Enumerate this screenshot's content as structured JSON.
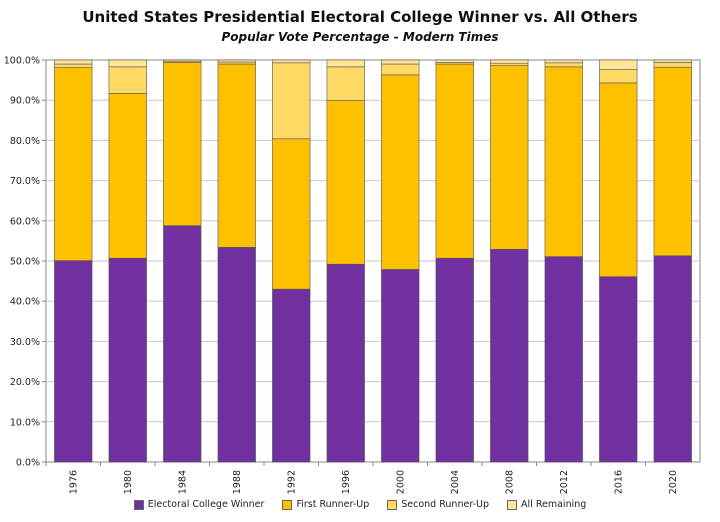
{
  "chart_data": {
    "type": "bar",
    "stacked": true,
    "title": "United States Presidential Electoral College Winner vs. All Others",
    "subtitle": "Popular Vote Percentage - Modern Times",
    "categories": [
      "1976",
      "1980",
      "1984",
      "1988",
      "1992",
      "1996",
      "2000",
      "2004",
      "2008",
      "2012",
      "2016",
      "2020"
    ],
    "series": [
      {
        "name": "Electoral College Winner",
        "color": "#7030A0",
        "values": [
          50.1,
          50.7,
          58.8,
          53.4,
          43.0,
          49.2,
          47.9,
          50.7,
          52.9,
          51.1,
          46.1,
          51.3
        ]
      },
      {
        "name": "First Runner-Up",
        "color": "#FFC000",
        "values": [
          48.0,
          41.0,
          40.6,
          45.6,
          37.4,
          40.7,
          48.4,
          48.3,
          45.7,
          47.2,
          48.2,
          46.9
        ]
      },
      {
        "name": "Second Runner-Up",
        "color": "#FFD966",
        "values": [
          0.9,
          6.6,
          0.3,
          0.5,
          18.9,
          8.4,
          2.7,
          0.4,
          0.6,
          1.0,
          3.3,
          1.2
        ]
      },
      {
        "name": "All Remaining",
        "color": "#FFE699",
        "values": [
          1.0,
          1.7,
          0.3,
          0.5,
          0.7,
          1.7,
          1.0,
          0.6,
          0.8,
          0.7,
          2.4,
          0.6
        ]
      }
    ],
    "yticks": [
      "0.0%",
      "10.0%",
      "20.0%",
      "30.0%",
      "40.0%",
      "50.0%",
      "60.0%",
      "70.0%",
      "80.0%",
      "90.0%",
      "100.0%"
    ],
    "ylim": [
      0,
      100
    ],
    "grid": true,
    "legend_position": "bottom"
  }
}
